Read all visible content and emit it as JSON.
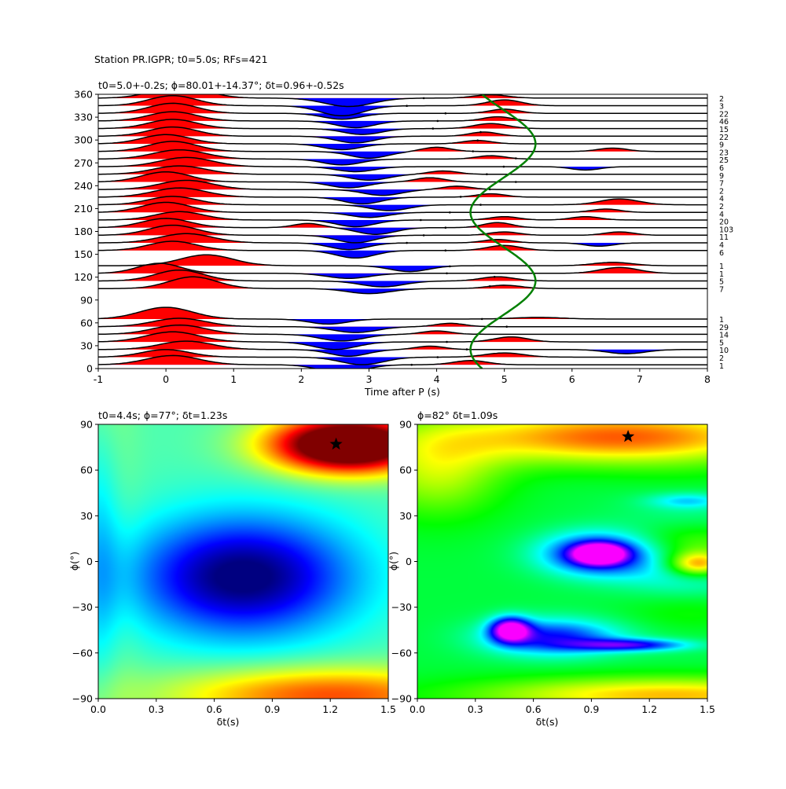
{
  "figure": {
    "suptitle": "Station PR.IGPR; t0=5.0s; RFs=421"
  },
  "chart_data": [
    {
      "type": "line",
      "name": "receiver-function-stack",
      "title": "t0=5.0+-0.2s; ϕ=80.01+-14.37°; δt=0.96+-0.52s",
      "xlabel": "Time after P (s)",
      "ylabel": "",
      "xlim": [
        -1,
        8
      ],
      "ylim": [
        0,
        360
      ],
      "xticks": [
        -1,
        0,
        1,
        2,
        3,
        4,
        5,
        6,
        7,
        8
      ],
      "yticks": [
        0,
        30,
        60,
        90,
        120,
        150,
        180,
        210,
        240,
        270,
        300,
        330,
        360
      ],
      "fill_positive_color": "#ff0000",
      "fill_negative_color": "#0000ff",
      "trace_color": "#000000",
      "fit_curve_color": "#008000",
      "fit_curve": {
        "t0": 5.0,
        "amplitude": 0.48,
        "period_deg": 180
      },
      "traces": [
        {
          "baz": 5,
          "count": "1",
          "peaks": [
            [
              0.1,
              0.55,
              0.55
            ],
            [
              2.6,
              -0.5,
              0.45
            ],
            [
              4.5,
              0.25,
              0.35
            ]
          ]
        },
        {
          "baz": 15,
          "count": "2",
          "peaks": [
            [
              0.0,
              0.45,
              0.5
            ],
            [
              2.9,
              -0.45,
              0.45
            ],
            [
              5.0,
              0.25,
              0.4
            ]
          ]
        },
        {
          "baz": 25,
          "count": "10",
          "peaks": [
            [
              0.3,
              0.5,
              0.55
            ],
            [
              2.7,
              -0.4,
              0.4
            ],
            [
              3.9,
              0.2,
              0.3
            ],
            [
              6.8,
              -0.25,
              0.4
            ]
          ]
        },
        {
          "baz": 35,
          "count": "5",
          "peaks": [
            [
              0.1,
              0.6,
              0.55
            ],
            [
              2.5,
              -0.45,
              0.45
            ],
            [
              5.1,
              0.3,
              0.35
            ]
          ]
        },
        {
          "baz": 45,
          "count": "14",
          "peaks": [
            [
              0.2,
              0.55,
              0.55
            ],
            [
              2.6,
              -0.4,
              0.45
            ],
            [
              4.0,
              0.2,
              0.3
            ]
          ]
        },
        {
          "baz": 55,
          "count": "29",
          "peaks": [
            [
              0.2,
              0.5,
              0.55
            ],
            [
              2.8,
              -0.35,
              0.45
            ],
            [
              4.2,
              0.2,
              0.3
            ]
          ]
        },
        {
          "baz": 65,
          "count": "1",
          "peaks": [
            [
              0.0,
              0.7,
              0.55
            ],
            [
              2.4,
              -0.3,
              0.4
            ],
            [
              5.5,
              0.1,
              0.5
            ]
          ]
        },
        {
          "baz": 105,
          "count": "7",
          "peaks": [
            [
              0.4,
              0.7,
              0.5
            ],
            [
              3.0,
              -0.3,
              0.45
            ],
            [
              5.0,
              0.2,
              0.35
            ]
          ]
        },
        {
          "baz": 115,
          "count": "5",
          "peaks": [
            [
              0.2,
              0.65,
              0.5
            ],
            [
              3.2,
              -0.35,
              0.45
            ],
            [
              4.9,
              0.25,
              0.35
            ]
          ]
        },
        {
          "baz": 125,
          "count": "1",
          "peaks": [
            [
              -0.1,
              0.6,
              0.45
            ],
            [
              2.7,
              -0.3,
              0.45
            ],
            [
              6.7,
              0.35,
              0.4
            ]
          ]
        },
        {
          "baz": 135,
          "count": "1",
          "peaks": [
            [
              0.6,
              0.65,
              0.55
            ],
            [
              3.6,
              -0.35,
              0.4
            ],
            [
              6.6,
              0.2,
              0.4
            ]
          ]
        },
        {
          "baz": 155,
          "count": "6",
          "peaks": [
            [
              0.1,
              0.55,
              0.5
            ],
            [
              2.8,
              -0.45,
              0.4
            ],
            [
              5.0,
              0.3,
              0.35
            ]
          ]
        },
        {
          "baz": 165,
          "count": "4",
          "peaks": [
            [
              0.3,
              0.55,
              0.55
            ],
            [
              2.7,
              -0.4,
              0.4
            ],
            [
              4.9,
              0.2,
              0.3
            ],
            [
              6.4,
              -0.2,
              0.3
            ]
          ]
        },
        {
          "baz": 175,
          "count": "11",
          "peaks": [
            [
              0.1,
              0.6,
              0.5
            ],
            [
              2.8,
              -0.45,
              0.4
            ],
            [
              5.0,
              0.2,
              0.3
            ],
            [
              6.7,
              0.2,
              0.3
            ]
          ]
        },
        {
          "baz": 185,
          "count": "103",
          "peaks": [
            [
              0.0,
              0.55,
              0.5
            ],
            [
              2.1,
              0.25,
              0.3
            ],
            [
              3.1,
              -0.4,
              0.4
            ],
            [
              4.9,
              0.3,
              0.3
            ]
          ]
        },
        {
          "baz": 195,
          "count": "20",
          "peaks": [
            [
              0.2,
              0.5,
              0.5
            ],
            [
              2.8,
              -0.4,
              0.4
            ],
            [
              5.0,
              0.2,
              0.3
            ],
            [
              6.2,
              0.2,
              0.3
            ]
          ]
        },
        {
          "baz": 205,
          "count": "4",
          "peaks": [
            [
              0.0,
              0.6,
              0.5
            ],
            [
              3.0,
              -0.3,
              0.4
            ],
            [
              6.5,
              0.2,
              0.3
            ]
          ]
        },
        {
          "baz": 215,
          "count": "2",
          "peaks": [
            [
              0.1,
              0.5,
              0.5
            ],
            [
              3.3,
              -0.35,
              0.4
            ],
            [
              6.7,
              0.35,
              0.4
            ]
          ]
        },
        {
          "baz": 225,
          "count": "4",
          "peaks": [
            [
              0.2,
              0.55,
              0.55
            ],
            [
              2.9,
              -0.4,
              0.4
            ],
            [
              4.8,
              0.2,
              0.3
            ]
          ]
        },
        {
          "baz": 235,
          "count": "2",
          "peaks": [
            [
              0.3,
              0.55,
              0.55
            ],
            [
              3.2,
              -0.35,
              0.4
            ],
            [
              4.3,
              0.2,
              0.3
            ]
          ]
        },
        {
          "baz": 245,
          "count": "7",
          "peaks": [
            [
              0.0,
              0.6,
              0.5
            ],
            [
              2.7,
              -0.35,
              0.4
            ],
            [
              3.9,
              0.25,
              0.3
            ]
          ]
        },
        {
          "baz": 255,
          "count": "9",
          "peaks": [
            [
              0.2,
              0.5,
              0.55
            ],
            [
              3.0,
              -0.35,
              0.4
            ],
            [
              4.1,
              0.2,
              0.3
            ]
          ]
        },
        {
          "baz": 265,
          "count": "6",
          "peaks": [
            [
              0.3,
              0.55,
              0.55
            ],
            [
              2.8,
              -0.3,
              0.4
            ],
            [
              6.2,
              -0.2,
              0.3
            ]
          ]
        },
        {
          "baz": 275,
          "count": "25",
          "peaks": [
            [
              0.2,
              0.55,
              0.55
            ],
            [
              2.6,
              -0.35,
              0.4
            ],
            [
              4.8,
              0.2,
              0.3
            ]
          ]
        },
        {
          "baz": 285,
          "count": "23",
          "peaks": [
            [
              0.1,
              0.6,
              0.5
            ],
            [
              3.0,
              -0.4,
              0.4
            ],
            [
              4.0,
              0.25,
              0.3
            ],
            [
              6.6,
              0.2,
              0.3
            ]
          ]
        },
        {
          "baz": 295,
          "count": "9",
          "peaks": [
            [
              0.0,
              0.55,
              0.5
            ],
            [
              2.6,
              -0.35,
              0.4
            ],
            [
              4.6,
              0.2,
              0.3
            ]
          ]
        },
        {
          "baz": 305,
          "count": "22",
          "peaks": [
            [
              0.1,
              0.55,
              0.5
            ],
            [
              2.8,
              -0.4,
              0.4
            ],
            [
              4.7,
              0.25,
              0.3
            ]
          ]
        },
        {
          "baz": 315,
          "count": "15",
          "peaks": [
            [
              0.1,
              0.55,
              0.5
            ],
            [
              2.9,
              -0.35,
              0.4
            ],
            [
              4.8,
              0.3,
              0.35
            ]
          ]
        },
        {
          "baz": 325,
          "count": "46",
          "peaks": [
            [
              0.1,
              0.55,
              0.5
            ],
            [
              2.8,
              -0.4,
              0.4
            ],
            [
              4.9,
              0.25,
              0.3
            ]
          ]
        },
        {
          "baz": 335,
          "count": "22",
          "peaks": [
            [
              0.1,
              0.6,
              0.5
            ],
            [
              2.6,
              -0.35,
              0.4
            ],
            [
              5.0,
              0.25,
              0.3
            ]
          ]
        },
        {
          "baz": 345,
          "count": "3",
          "peaks": [
            [
              0.1,
              0.6,
              0.5
            ],
            [
              2.6,
              -0.6,
              0.45
            ],
            [
              5.0,
              0.35,
              0.35
            ]
          ]
        },
        {
          "baz": 355,
          "count": "2",
          "peaks": [
            [
              0.2,
              0.7,
              0.55
            ],
            [
              2.7,
              -0.5,
              0.5
            ],
            [
              4.8,
              0.2,
              0.35
            ]
          ]
        }
      ]
    },
    {
      "type": "heatmap",
      "name": "grid-search-left",
      "title": "t0=4.4s; ϕ=77°; δt=1.23s",
      "xlabel": "δt(s)",
      "ylabel": "ϕ(°)",
      "xlim": [
        0.0,
        1.5
      ],
      "ylim": [
        -90,
        90
      ],
      "xticks": [
        "0.0",
        "0.3",
        "0.6",
        "0.9",
        "1.2",
        "1.5"
      ],
      "yticks": [
        "−90",
        "−60",
        "−30",
        "0",
        "30",
        "60",
        "90"
      ],
      "colormap": "jet",
      "best": {
        "dt": 1.23,
        "phi": 77
      },
      "max_value_location": {
        "dt": 1.23,
        "phi": 77
      },
      "min_value_location": {
        "dt": 0.75,
        "phi": -10
      }
    },
    {
      "type": "heatmap",
      "name": "grid-search-right",
      "title": "ϕ=82° δt=1.09s",
      "xlabel": "δt(s)",
      "ylabel": "ϕ(°)",
      "xlim": [
        0.0,
        1.5
      ],
      "ylim": [
        -90,
        90
      ],
      "xticks": [
        "0.0",
        "0.3",
        "0.6",
        "0.9",
        "1.2",
        "1.5"
      ],
      "yticks": [
        "−90",
        "−60",
        "−30",
        "0",
        "30",
        "60",
        "90"
      ],
      "colormap": "hsv",
      "best": {
        "dt": 1.09,
        "phi": 82
      },
      "min_value_locations": [
        {
          "dt": 0.95,
          "phi": 5
        },
        {
          "dt": 0.5,
          "phi": -45
        }
      ]
    }
  ]
}
